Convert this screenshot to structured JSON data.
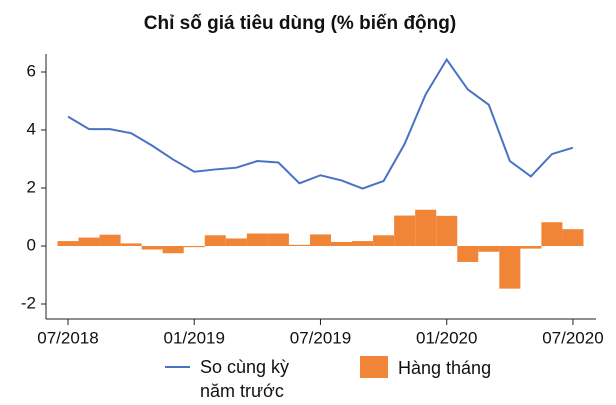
{
  "chart_data": {
    "type": "bar-line",
    "title": "Chỉ số giá tiêu dùng (% biến động)",
    "categories": [
      "07/2018",
      null,
      null,
      null,
      null,
      null,
      "01/2019",
      null,
      null,
      null,
      null,
      null,
      "07/2019",
      null,
      null,
      null,
      null,
      null,
      "01/2020",
      null,
      null,
      null,
      null,
      null,
      "07/2020"
    ],
    "series": [
      {
        "name": "So cùng kỳ năm trước",
        "color": "#4a72c4",
        "kind": "line",
        "values": [
          4.46,
          4.03,
          4.03,
          3.89,
          3.46,
          2.98,
          2.56,
          2.64,
          2.7,
          2.93,
          2.88,
          2.16,
          2.44,
          2.26,
          1.98,
          2.24,
          3.52,
          5.23,
          6.43,
          5.4,
          4.87,
          2.93,
          2.4,
          3.17,
          3.39
        ]
      },
      {
        "name": "Hàng tháng",
        "color": "#f08537",
        "kind": "bar",
        "values": [
          0.17,
          0.29,
          0.39,
          0.09,
          -0.12,
          -0.25,
          -0.04,
          0.37,
          0.26,
          0.43,
          0.43,
          0.04,
          0.4,
          0.14,
          0.17,
          0.37,
          1.05,
          1.25,
          1.04,
          -0.55,
          -0.2,
          -1.47,
          -0.09,
          0.82,
          0.58
        ]
      }
    ],
    "ylim": [
      -2.5,
      6.6
    ],
    "yticks": [
      -2,
      0,
      2,
      4,
      6
    ]
  }
}
